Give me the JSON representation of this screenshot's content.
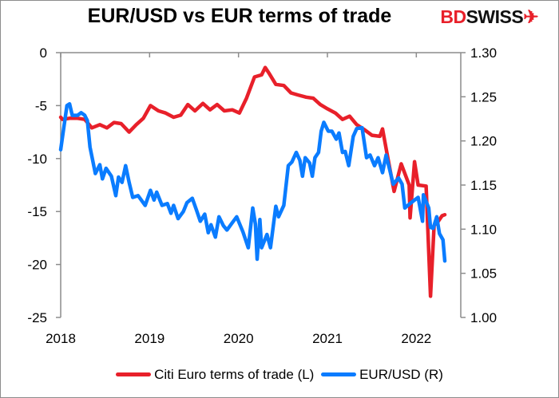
{
  "chart_data": {
    "type": "line",
    "title": "EUR/USD vs EUR terms of trade",
    "logo": "BDSWISS",
    "x_ticks": [
      "2018",
      "2019",
      "2020",
      "2021",
      "2022"
    ],
    "xlim": [
      2018,
      2022.5
    ],
    "y_left": {
      "ylim": [
        -25,
        0
      ],
      "ticks": [
        "0",
        "-5",
        "-10",
        "-15",
        "-20",
        "-25"
      ]
    },
    "y_right": {
      "ylim": [
        1.0,
        1.3
      ],
      "ticks": [
        "1.30",
        "1.25",
        "1.20",
        "1.15",
        "1.10",
        "1.05",
        "1.00"
      ]
    },
    "grid": false,
    "legend_position": "bottom",
    "series": [
      {
        "name": "Citi Euro terms of trade (L)",
        "axis": "left",
        "color": "#e8202a",
        "x": [
          2018.0,
          2018.02,
          2018.1,
          2018.19,
          2018.27,
          2018.35,
          2018.44,
          2018.52,
          2018.6,
          2018.68,
          2018.77,
          2018.85,
          2018.93,
          2019.01,
          2019.1,
          2019.18,
          2019.27,
          2019.35,
          2019.43,
          2019.51,
          2019.6,
          2019.68,
          2019.76,
          2019.84,
          2019.93,
          2020.01,
          2020.09,
          2020.18,
          2020.26,
          2020.3,
          2020.34,
          2020.42,
          2020.51,
          2020.59,
          2020.67,
          2020.76,
          2020.84,
          2020.92,
          2021.0,
          2021.09,
          2021.17,
          2021.25,
          2021.33,
          2021.42,
          2021.5,
          2021.59,
          2021.62,
          2021.67,
          2021.75,
          2021.83,
          2021.92,
          2021.93,
          2021.98,
          2022.02,
          2022.11,
          2022.16,
          2022.2,
          2022.24,
          2022.29,
          2022.32
        ],
        "y": [
          -6.1,
          -6.3,
          -6.2,
          -6.2,
          -6.3,
          -7.1,
          -6.8,
          -7.1,
          -6.6,
          -6.7,
          -7.5,
          -6.8,
          -6.2,
          -5.0,
          -5.5,
          -5.7,
          -6.1,
          -5.9,
          -4.9,
          -5.5,
          -4.8,
          -5.4,
          -4.9,
          -5.5,
          -5.4,
          -5.7,
          -4.3,
          -2.3,
          -2.1,
          -1.4,
          -1.9,
          -3.0,
          -3.1,
          -3.8,
          -4.0,
          -4.2,
          -4.3,
          -4.9,
          -5.3,
          -5.7,
          -6.3,
          -6.0,
          -6.8,
          -7.3,
          -7.8,
          -7.9,
          -7.2,
          -9.5,
          -13.1,
          -10.5,
          -12.5,
          -15.6,
          -10.3,
          -12.5,
          -12.6,
          -23.0,
          -16.3,
          -16.0,
          -15.4,
          -15.3
        ]
      },
      {
        "name": "EUR/USD (R)",
        "axis": "right",
        "color": "#0a7cff",
        "x": [
          2018.0,
          2018.07,
          2018.1,
          2018.13,
          2018.19,
          2018.23,
          2018.27,
          2018.3,
          2018.33,
          2018.39,
          2018.44,
          2018.47,
          2018.51,
          2018.57,
          2018.62,
          2018.65,
          2018.69,
          2018.73,
          2018.77,
          2018.81,
          2018.87,
          2018.95,
          2019.01,
          2019.05,
          2019.08,
          2019.14,
          2019.2,
          2019.24,
          2019.27,
          2019.32,
          2019.38,
          2019.42,
          2019.48,
          2019.53,
          2019.57,
          2019.62,
          2019.66,
          2019.69,
          2019.74,
          2019.78,
          2019.83,
          2019.87,
          2019.92,
          2019.98,
          2020.05,
          2020.11,
          2020.16,
          2020.19,
          2020.21,
          2020.24,
          2020.26,
          2020.32,
          2020.36,
          2020.42,
          2020.45,
          2020.51,
          2020.56,
          2020.6,
          2020.65,
          2020.69,
          2020.72,
          2020.75,
          2020.8,
          2020.83,
          2020.86,
          2020.9,
          2020.93,
          2020.96,
          2021.01,
          2021.05,
          2021.1,
          2021.13,
          2021.17,
          2021.2,
          2021.24,
          2021.29,
          2021.33,
          2021.39,
          2021.44,
          2021.48,
          2021.53,
          2021.57,
          2021.62,
          2021.66,
          2021.74,
          2021.8,
          2021.84,
          2021.87,
          2021.93,
          2021.98,
          2022.02,
          2022.07,
          2022.08,
          2022.14,
          2022.16,
          2022.19,
          2022.23,
          2022.26,
          2022.3,
          2022.32
        ],
        "y": [
          1.19,
          1.24,
          1.242,
          1.229,
          1.229,
          1.232,
          1.229,
          1.223,
          1.193,
          1.163,
          1.173,
          1.157,
          1.169,
          1.16,
          1.138,
          1.159,
          1.153,
          1.172,
          1.153,
          1.136,
          1.138,
          1.127,
          1.144,
          1.133,
          1.142,
          1.127,
          1.129,
          1.118,
          1.127,
          1.112,
          1.12,
          1.13,
          1.135,
          1.121,
          1.109,
          1.117,
          1.096,
          1.105,
          1.091,
          1.114,
          1.104,
          1.099,
          1.106,
          1.114,
          1.097,
          1.079,
          1.124,
          1.106,
          1.066,
          1.111,
          1.079,
          1.094,
          1.079,
          1.126,
          1.114,
          1.127,
          1.172,
          1.176,
          1.187,
          1.178,
          1.16,
          1.181,
          1.175,
          1.16,
          1.181,
          1.187,
          1.211,
          1.221,
          1.211,
          1.211,
          1.202,
          1.209,
          1.187,
          1.188,
          1.172,
          1.205,
          1.214,
          1.215,
          1.181,
          1.184,
          1.172,
          1.181,
          1.164,
          1.184,
          1.151,
          1.158,
          1.151,
          1.124,
          1.129,
          1.133,
          1.136,
          1.109,
          1.139,
          1.124,
          1.102,
          1.101,
          1.114,
          1.095,
          1.088,
          1.064
        ]
      }
    ]
  }
}
